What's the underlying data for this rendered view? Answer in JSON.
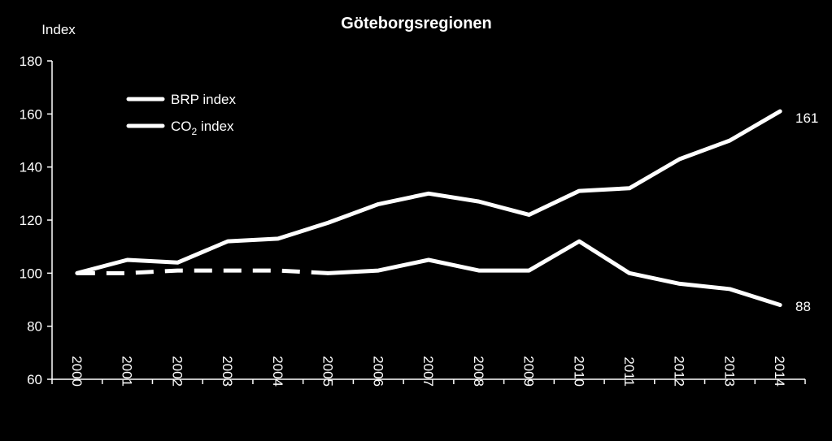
{
  "chart_data": {
    "type": "line",
    "title": "Göteborgsregionen",
    "ylabel": "Index",
    "xlabel": "",
    "ylim": [
      60,
      180
    ],
    "yticks": [
      60,
      80,
      100,
      120,
      140,
      160,
      180
    ],
    "categories": [
      "2000",
      "2001",
      "2002",
      "2003",
      "2004",
      "2005",
      "2006",
      "2007",
      "2008",
      "2009",
      "2010",
      "2011",
      "2012",
      "2013",
      "2014"
    ],
    "legend_position": "top-left",
    "grid": false,
    "series": [
      {
        "name": "BRP index",
        "values": [
          100,
          105,
          104,
          112,
          113,
          119,
          126,
          130,
          127,
          122,
          131,
          132,
          143,
          150,
          161
        ]
      },
      {
        "name": "CO2 index",
        "name_main": "CO",
        "name_sub": "2",
        "name_rest": " index",
        "values": [
          100,
          100,
          101,
          101,
          101,
          100,
          101,
          105,
          101,
          101,
          112,
          100,
          96,
          94,
          88
        ],
        "dashed_until_index": 5
      }
    ],
    "end_labels": [
      "161",
      "88"
    ],
    "colors": {
      "background": "#000000",
      "foreground": "#ffffff"
    }
  }
}
